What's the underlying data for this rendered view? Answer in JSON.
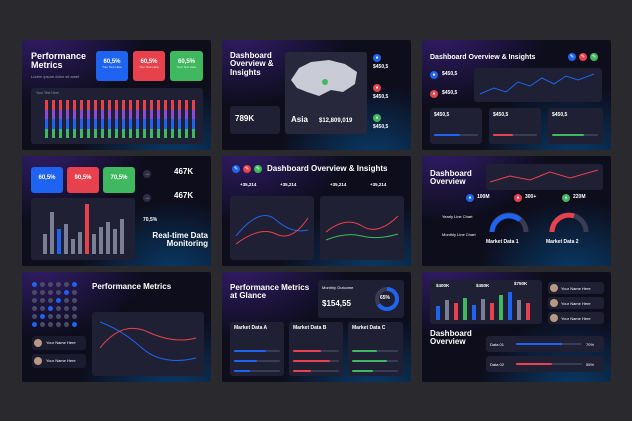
{
  "s1": {
    "title": "Performance Metrics",
    "sub": "Lorem ipsum dolor sit amet",
    "kpi_value": "60,5%",
    "kpi_label": "Your Text Here",
    "chart_label": "Your Text Here"
  },
  "s2": {
    "title": "Dashboard Overview & Insights",
    "stat": "789K",
    "region": "Asia",
    "amount": "$12,809,019",
    "side_value": "$450,5",
    "side_label": "Your Data Here"
  },
  "s3": {
    "title": "Dashboard Overview & Insights",
    "value": "$450,5",
    "label": "Your Data Here"
  },
  "s4": {
    "kpi": [
      "60,5%",
      "90,5%",
      "70,5%"
    ],
    "big1": "467K",
    "big2": "467K",
    "pct": "70,5%",
    "label": "Your Data Here",
    "title": "Real-time Data Monitoring"
  },
  "s5": {
    "title": "Dashboard Overview & Insights",
    "stat": "+35,214"
  },
  "s6": {
    "title": "Dashboard Overview",
    "kpis": [
      "100M",
      "300+",
      "220M"
    ],
    "yearly": "Yearly Line Chart",
    "monthly": "Monthly Line Chart",
    "market1": "Market Data 1",
    "market2": "Market Data 2"
  },
  "s7": {
    "title": "Performance Metrics",
    "name": "Your Name Here"
  },
  "s8": {
    "title": "Performance Metrics at Glance",
    "monthly": "Monthly Outcome",
    "amount": "$154,55",
    "pct": "65%",
    "cols": [
      "Market Data A",
      "Market Data B",
      "Market Data C"
    ]
  },
  "s9": {
    "title": "Dashboard Overview",
    "values": [
      "$400K",
      "$450K",
      "$750K"
    ],
    "name": "Your Name Here",
    "data1": "Data 01",
    "data2": "Data 02",
    "p1": "70%",
    "p2": "55%"
  },
  "colors": {
    "blue": "#1e64f0",
    "red": "#e8414e",
    "green": "#3fb85f"
  }
}
